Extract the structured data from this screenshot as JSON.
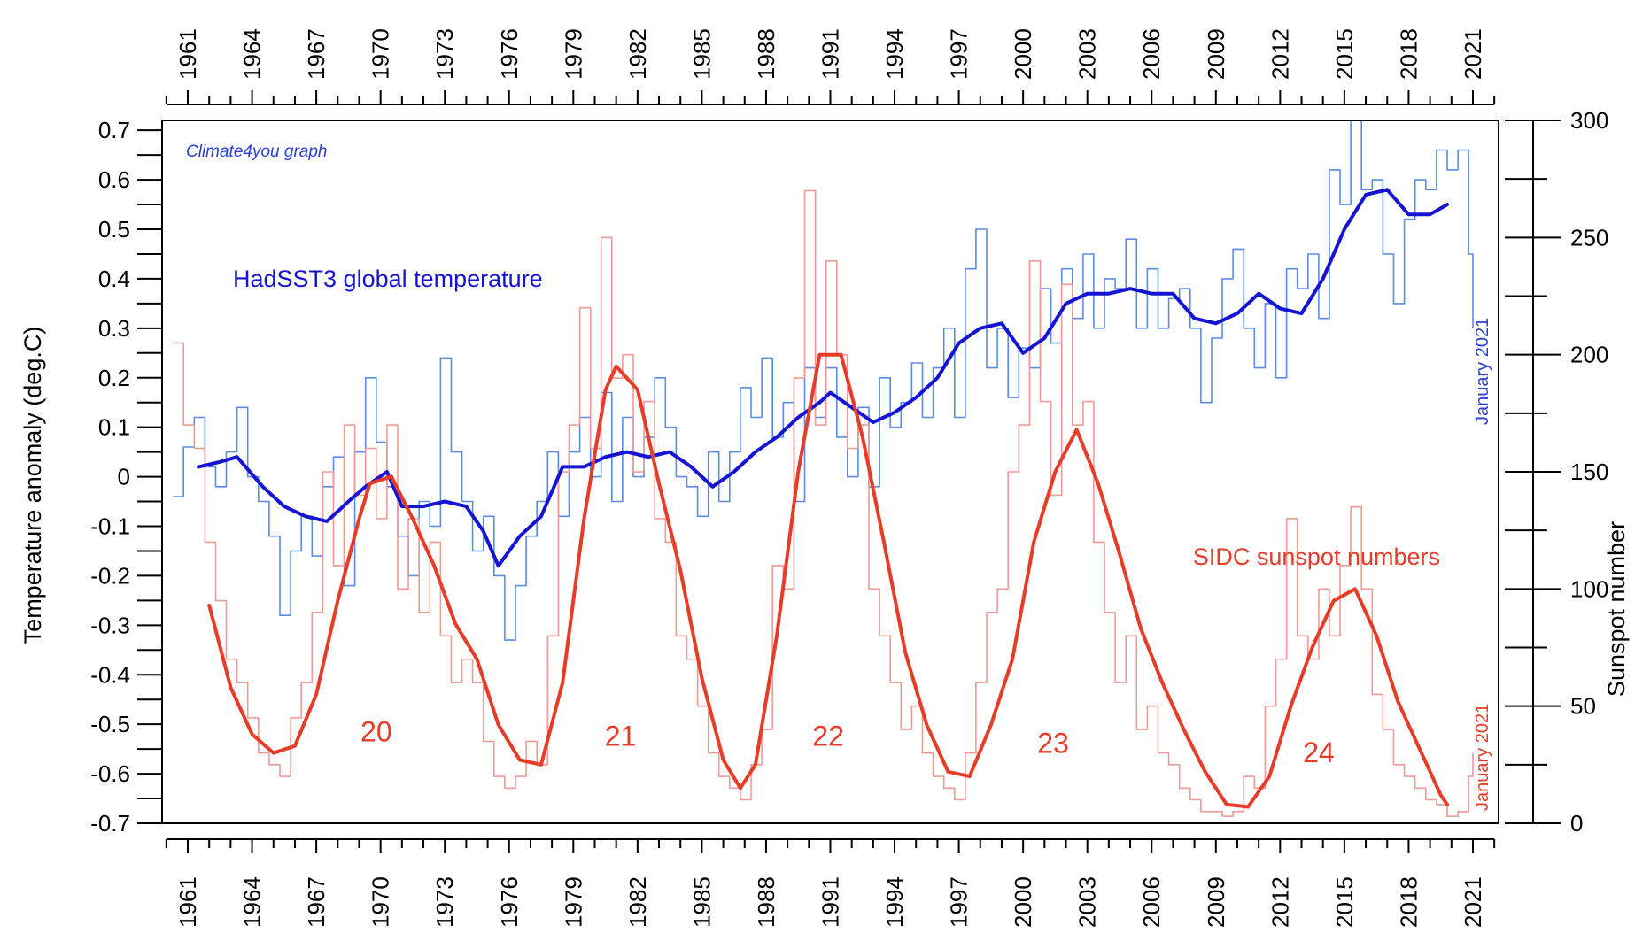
{
  "watermark": "Climate4you graph",
  "chart_data": {
    "type": "line",
    "x_axis": {
      "range": [
        1959.8,
        2022.2
      ],
      "ticks": [
        1961,
        1964,
        1967,
        1970,
        1973,
        1976,
        1979,
        1982,
        1985,
        1988,
        1991,
        1994,
        1997,
        2000,
        2003,
        2006,
        2009,
        2012,
        2015,
        2018,
        2021
      ],
      "minor_step": 1,
      "shown_top_and_bottom": true
    },
    "y_left": {
      "label": "Temperature anomaly (deg.C)",
      "range": [
        -0.7,
        0.72
      ],
      "ticks": [
        0.7,
        0.6,
        0.5,
        0.4,
        0.3,
        0.2,
        0.1,
        0,
        -0.1,
        -0.2,
        -0.3,
        -0.4,
        -0.5,
        -0.6,
        -0.7
      ],
      "tick_labels": [
        "0.7",
        "0.6",
        "0.5",
        "0.4",
        "0.3",
        "0.2",
        "0.1",
        "0",
        "-0.1",
        "-0.2",
        "-0.3",
        "-0.4",
        "-0.5",
        "-0.6",
        "-0.7"
      ]
    },
    "y_right": {
      "label": "Sunspot number",
      "range": [
        0,
        300
      ],
      "ticks": [
        300,
        250,
        200,
        150,
        100,
        50,
        0
      ],
      "tick_labels": [
        "300",
        "250",
        "200",
        "150",
        "100",
        "50",
        "0"
      ]
    },
    "series": [
      {
        "name": "HadSST3 global temperature",
        "axis": "left",
        "color": "#1414d2",
        "raw_color": "#5a8be6",
        "end_label": "January 2021",
        "smoothed": {
          "x": [
            1961.5,
            1962.5,
            1963.3,
            1964.5,
            1965.5,
            1966.5,
            1967.5,
            1968.5,
            1969.3,
            1970.3,
            1971,
            1972,
            1973,
            1974,
            1974.8,
            1975.5,
            1976.5,
            1977.5,
            1978.5,
            1979.5,
            1980.5,
            1981.5,
            1982.5,
            1983.5,
            1984.5,
            1985.5,
            1986.5,
            1987.5,
            1988.5,
            1989.5,
            1990.5,
            1991,
            1992,
            1993,
            1994,
            1995,
            1996,
            1997,
            1998,
            1999,
            2000,
            2001,
            2002,
            2003,
            2004,
            2005,
            2006,
            2007,
            2008,
            2009,
            2010,
            2011,
            2012,
            2013,
            2014,
            2015,
            2016,
            2017,
            2018,
            2019,
            2019.8
          ],
          "y": [
            0.02,
            0.03,
            0.04,
            -0.02,
            -0.06,
            -0.08,
            -0.09,
            -0.05,
            -0.02,
            0.01,
            -0.06,
            -0.06,
            -0.05,
            -0.06,
            -0.11,
            -0.18,
            -0.12,
            -0.08,
            0.02,
            0.02,
            0.04,
            0.05,
            0.04,
            0.05,
            0.02,
            -0.02,
            0.01,
            0.05,
            0.08,
            0.12,
            0.15,
            0.17,
            0.14,
            0.11,
            0.13,
            0.16,
            0.2,
            0.27,
            0.3,
            0.31,
            0.25,
            0.28,
            0.35,
            0.37,
            0.37,
            0.38,
            0.37,
            0.37,
            0.32,
            0.31,
            0.33,
            0.37,
            0.34,
            0.33,
            0.4,
            0.5,
            0.57,
            0.58,
            0.53,
            0.53,
            0.55
          ]
        },
        "raw": {
          "x": [
            1960.3,
            1960.8,
            1961.3,
            1961.8,
            1962.3,
            1962.8,
            1963.3,
            1963.8,
            1964.3,
            1964.8,
            1965.3,
            1965.8,
            1966.3,
            1966.8,
            1967.3,
            1967.8,
            1968.3,
            1968.8,
            1969.3,
            1969.8,
            1970.3,
            1970.8,
            1971.3,
            1971.8,
            1972.3,
            1972.8,
            1973.3,
            1973.8,
            1974.3,
            1974.8,
            1975.3,
            1975.8,
            1976.3,
            1976.8,
            1977.3,
            1977.8,
            1978.3,
            1978.8,
            1979.3,
            1979.8,
            1980.3,
            1980.8,
            1981.3,
            1981.8,
            1982.3,
            1982.8,
            1983.3,
            1983.8,
            1984.3,
            1984.8,
            1985.3,
            1985.8,
            1986.3,
            1986.8,
            1987.3,
            1987.8,
            1988.3,
            1988.8,
            1989.3,
            1989.8,
            1990.3,
            1990.8,
            1991.3,
            1991.8,
            1992.3,
            1992.8,
            1993.3,
            1993.8,
            1994.3,
            1994.8,
            1995.3,
            1995.8,
            1996.3,
            1996.8,
            1997.3,
            1997.8,
            1998.3,
            1998.8,
            1999.3,
            1999.8,
            2000.3,
            2000.8,
            2001.3,
            2001.8,
            2002.3,
            2002.8,
            2003.3,
            2003.8,
            2004.3,
            2004.8,
            2005.3,
            2005.8,
            2006.3,
            2006.8,
            2007.3,
            2007.8,
            2008.3,
            2008.8,
            2009.3,
            2009.8,
            2010.3,
            2010.8,
            2011.3,
            2011.8,
            2012.3,
            2012.8,
            2013.3,
            2013.8,
            2014.3,
            2014.8,
            2015.3,
            2015.8,
            2016.3,
            2016.8,
            2017.3,
            2017.8,
            2018.3,
            2018.8,
            2019.3,
            2019.8,
            2020.3,
            2020.8,
            2021.0
          ],
          "y": [
            -0.04,
            0.06,
            0.12,
            0.02,
            -0.02,
            0.05,
            0.14,
            0.0,
            -0.05,
            -0.12,
            -0.28,
            -0.15,
            -0.08,
            -0.16,
            -0.02,
            0.04,
            -0.22,
            0.05,
            0.2,
            0.07,
            -0.02,
            -0.12,
            -0.2,
            -0.05,
            -0.1,
            0.24,
            0.05,
            -0.05,
            -0.15,
            -0.08,
            -0.2,
            -0.33,
            -0.22,
            -0.12,
            -0.05,
            0.05,
            -0.08,
            0.05,
            0.12,
            0.0,
            0.17,
            -0.05,
            0.12,
            0.0,
            0.08,
            0.2,
            0.1,
            0.0,
            -0.02,
            -0.08,
            0.05,
            -0.05,
            0.05,
            0.18,
            0.12,
            0.24,
            0.08,
            0.15,
            -0.05,
            0.22,
            0.12,
            0.22,
            0.08,
            0.0,
            0.14,
            -0.02,
            0.2,
            0.1,
            0.15,
            0.23,
            0.12,
            0.22,
            0.3,
            0.12,
            0.42,
            0.5,
            0.22,
            0.3,
            0.16,
            0.26,
            0.22,
            0.38,
            0.27,
            0.42,
            0.32,
            0.45,
            0.3,
            0.4,
            0.38,
            0.48,
            0.3,
            0.42,
            0.3,
            0.36,
            0.38,
            0.3,
            0.15,
            0.28,
            0.4,
            0.46,
            0.3,
            0.22,
            0.35,
            0.2,
            0.42,
            0.38,
            0.45,
            0.32,
            0.62,
            0.55,
            0.72,
            0.58,
            0.6,
            0.45,
            0.35,
            0.52,
            0.6,
            0.58,
            0.66,
            0.62,
            0.66,
            0.45,
            0.3
          ]
        }
      },
      {
        "name": "SIDC sunspot numbers",
        "axis": "right",
        "color": "#e63c28",
        "raw_color": "#f09a96",
        "end_label": "January 2021",
        "smoothed": {
          "x": [
            1962,
            1963,
            1964,
            1965,
            1966,
            1967,
            1968,
            1969,
            1969.5,
            1970.5,
            1971.5,
            1972.5,
            1973.5,
            1974.5,
            1975.5,
            1976.5,
            1977.5,
            1978.5,
            1979.5,
            1980.5,
            1981,
            1982,
            1983,
            1984,
            1985,
            1986,
            1986.8,
            1987.5,
            1988.5,
            1989.5,
            1990.5,
            1991.5,
            1992.5,
            1993.5,
            1994.5,
            1995.5,
            1996.5,
            1997.5,
            1998.5,
            1999.5,
            2000.5,
            2001.5,
            2002.5,
            2003.5,
            2004.5,
            2005.5,
            2006.5,
            2007.5,
            2008.5,
            2009.5,
            2010.5,
            2011.5,
            2012.5,
            2013.5,
            2014.5,
            2015.5,
            2016.5,
            2017.5,
            2018.5,
            2019.5,
            2019.8
          ],
          "y": [
            93,
            58,
            38,
            30,
            33,
            55,
            95,
            130,
            145,
            148,
            130,
            110,
            85,
            70,
            42,
            27,
            25,
            60,
            130,
            185,
            195,
            185,
            145,
            108,
            62,
            27,
            15,
            25,
            80,
            150,
            200,
            200,
            165,
            120,
            73,
            42,
            22,
            20,
            42,
            70,
            120,
            150,
            168,
            145,
            115,
            83,
            60,
            40,
            22,
            8,
            7,
            20,
            50,
            75,
            95,
            100,
            80,
            52,
            32,
            12,
            8
          ]
        },
        "raw": {
          "x": [
            1960.3,
            1960.8,
            1961.3,
            1961.8,
            1962.3,
            1962.8,
            1963.3,
            1963.8,
            1964.3,
            1964.8,
            1965.3,
            1965.8,
            1966.3,
            1966.8,
            1967.3,
            1967.8,
            1968.3,
            1968.8,
            1969.3,
            1969.8,
            1970.3,
            1970.8,
            1971.3,
            1971.8,
            1972.3,
            1972.8,
            1973.3,
            1973.8,
            1974.3,
            1974.8,
            1975.3,
            1975.8,
            1976.3,
            1976.8,
            1977.3,
            1977.8,
            1978.3,
            1978.8,
            1979.3,
            1979.8,
            1980.3,
            1980.8,
            1981.3,
            1981.8,
            1982.3,
            1982.8,
            1983.3,
            1983.8,
            1984.3,
            1984.8,
            1985.3,
            1985.8,
            1986.3,
            1986.8,
            1987.3,
            1987.8,
            1988.3,
            1988.8,
            1989.3,
            1989.8,
            1990.3,
            1990.8,
            1991.3,
            1991.8,
            1992.3,
            1992.8,
            1993.3,
            1993.8,
            1994.3,
            1994.8,
            1995.3,
            1995.8,
            1996.3,
            1996.8,
            1997.3,
            1997.8,
            1998.3,
            1998.8,
            1999.3,
            1999.8,
            2000.3,
            2000.8,
            2001.3,
            2001.8,
            2002.3,
            2002.8,
            2003.3,
            2003.8,
            2004.3,
            2004.8,
            2005.3,
            2005.8,
            2006.3,
            2006.8,
            2007.3,
            2007.8,
            2008.3,
            2008.8,
            2009.3,
            2009.8,
            2010.3,
            2010.8,
            2011.3,
            2011.8,
            2012.3,
            2012.8,
            2013.3,
            2013.8,
            2014.3,
            2014.8,
            2015.3,
            2015.8,
            2016.3,
            2016.8,
            2017.3,
            2017.8,
            2018.3,
            2018.8,
            2019.3,
            2019.8,
            2020.3,
            2020.8,
            2021.0
          ],
          "y": [
            205,
            170,
            160,
            120,
            95,
            70,
            60,
            45,
            30,
            25,
            20,
            45,
            60,
            90,
            150,
            110,
            170,
            140,
            160,
            130,
            170,
            100,
            130,
            90,
            120,
            80,
            60,
            70,
            60,
            35,
            20,
            15,
            20,
            35,
            25,
            80,
            150,
            170,
            220,
            160,
            250,
            190,
            200,
            150,
            180,
            130,
            120,
            80,
            70,
            50,
            30,
            20,
            15,
            10,
            25,
            40,
            110,
            100,
            190,
            270,
            170,
            240,
            200,
            160,
            170,
            100,
            80,
            60,
            40,
            50,
            30,
            20,
            15,
            10,
            30,
            60,
            90,
            100,
            150,
            170,
            240,
            180,
            140,
            230,
            170,
            180,
            120,
            90,
            60,
            80,
            40,
            50,
            30,
            25,
            15,
            10,
            5,
            5,
            3,
            5,
            20,
            15,
            50,
            70,
            130,
            80,
            70,
            100,
            80,
            110,
            135,
            100,
            55,
            40,
            25,
            20,
            15,
            10,
            8,
            3,
            5,
            20,
            30
          ]
        }
      }
    ],
    "annotations": [
      {
        "text": "20",
        "x": 1969.8,
        "y": 35
      },
      {
        "text": "21",
        "x": 1981.2,
        "y": 33
      },
      {
        "text": "22",
        "x": 1990.9,
        "y": 33
      },
      {
        "text": "23",
        "x": 2001.4,
        "y": 30
      },
      {
        "text": "24",
        "x": 2013.8,
        "y": 26
      }
    ]
  }
}
